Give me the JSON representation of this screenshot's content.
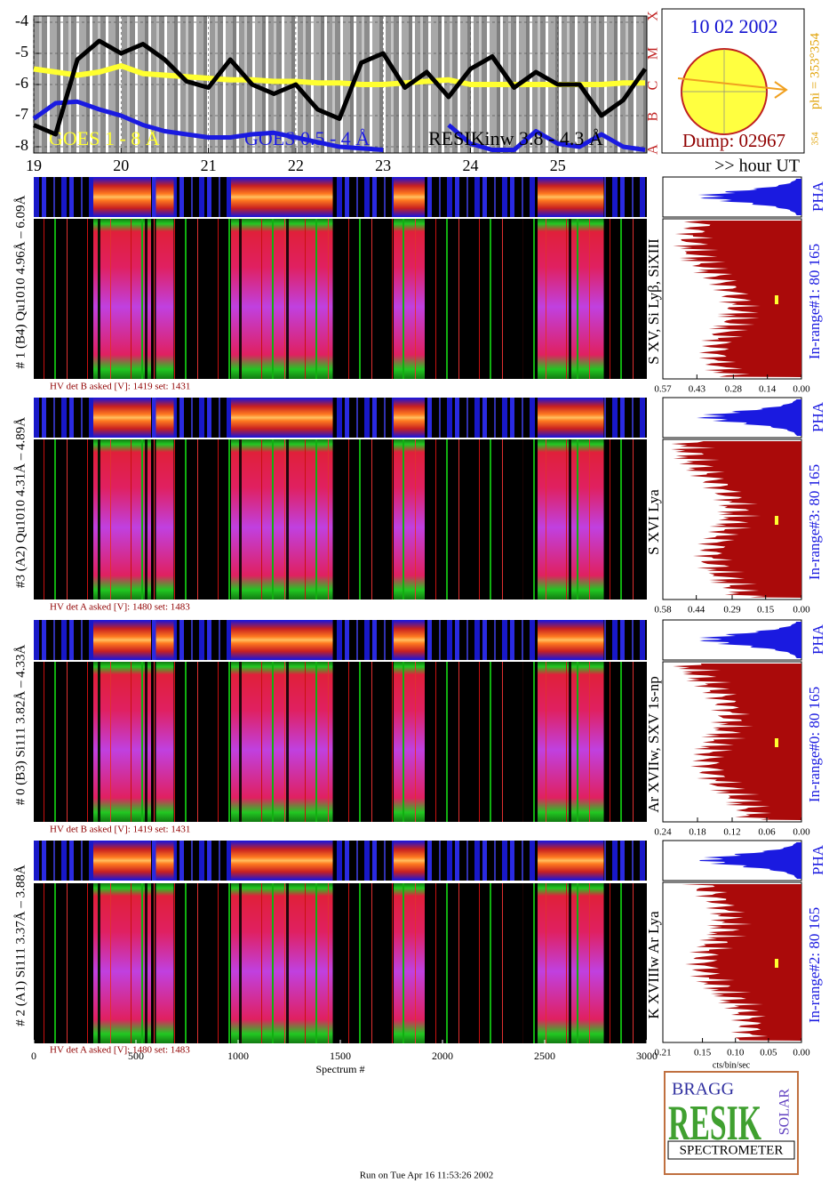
{
  "chart_data": [
    {
      "type": "line",
      "grid": true,
      "x": [
        19,
        19.25,
        19.5,
        19.75,
        20,
        20.25,
        20.5,
        20.75,
        21,
        21.25,
        21.5,
        21.75,
        22,
        22.25,
        22.5,
        22.75,
        23,
        23.25,
        23.5,
        23.75,
        24,
        24.25,
        24.5,
        24.75,
        25,
        25.25,
        25.5,
        25.75,
        26
      ],
      "xlim": [
        19,
        26.02
      ],
      "xticks": [
        19,
        20,
        21,
        22,
        23,
        24,
        25
      ],
      "ylim": [
        -8.2,
        -3.8
      ],
      "yticks": [
        -4,
        -5,
        -6,
        -7,
        -8
      ],
      "class_labels": [
        "A",
        "B",
        "C",
        "M",
        "X"
      ],
      "x_axis_label": ">> hour UT",
      "series": [
        {
          "name": "GOES 1 - 8 Å",
          "color": "#ffff30",
          "values": [
            -5.5,
            -5.6,
            -5.7,
            -5.6,
            -5.4,
            -5.65,
            -5.7,
            -5.75,
            -5.8,
            -5.85,
            -5.85,
            -5.9,
            -5.9,
            -5.95,
            -5.95,
            -6.0,
            -6.0,
            -5.95,
            -5.9,
            -5.85,
            -6.0,
            -6.0,
            -6.0,
            -6.0,
            -6.0,
            -6.0,
            -6.0,
            -5.95,
            -5.95
          ]
        },
        {
          "name": "GOES 0.5 - 4 Å",
          "color": "#1a1ae0",
          "values": [
            -7.1,
            -6.6,
            -6.55,
            -6.8,
            -7.0,
            -7.3,
            -7.5,
            -7.6,
            -7.7,
            -7.7,
            -7.6,
            -7.55,
            -7.7,
            -7.85,
            -8.0,
            -8.05,
            -8.1,
            null,
            null,
            -7.3,
            -7.9,
            -8.1,
            -8.1,
            -7.5,
            -7.9,
            -8.0,
            -7.6,
            -8.0,
            -8.1
          ]
        },
        {
          "name": "RESIKinw 3.8 - 4.3 Å",
          "color": "#000000",
          "values": [
            -7.3,
            -7.6,
            -5.2,
            -4.6,
            -5.0,
            -4.7,
            -5.2,
            -5.9,
            -6.1,
            -5.2,
            -6.0,
            -6.3,
            -6.0,
            -6.8,
            -7.1,
            -5.3,
            -5.0,
            -6.1,
            -5.6,
            -6.4,
            -5.5,
            -5.1,
            -6.1,
            -5.6,
            -6.0,
            -6.0,
            -7.0,
            -6.5,
            -5.5
          ]
        }
      ]
    },
    {
      "type": "area",
      "title": "PHA",
      "xlim": [
        0.57,
        0
      ],
      "xticks": [
        0.57,
        0.43,
        0.28,
        0.14,
        {
          "value": 0,
          "label": "0.00"
        }
      ]
    },
    {
      "type": "area",
      "title": "PHA",
      "xlim": [
        0.58,
        0
      ],
      "xticks": [
        0.58,
        0.44,
        0.29,
        0.15,
        {
          "value": 0,
          "label": "0.00"
        }
      ]
    },
    {
      "type": "area",
      "title": "PHA",
      "xlim": [
        0.24,
        0
      ],
      "xticks": [
        0.24,
        0.18,
        0.12,
        0.06,
        {
          "value": 0,
          "label": "0.00"
        }
      ]
    },
    {
      "type": "area",
      "title": "PHA",
      "xlim": [
        0.21,
        0
      ],
      "xticks": [
        0.21,
        0.15,
        {
          "value": 0.1,
          "label": "0.10"
        },
        0.05,
        {
          "value": 0,
          "label": "0.00"
        }
      ]
    },
    {
      "type": "axis",
      "xlim": [
        0,
        3000
      ],
      "xticks": [
        0,
        500,
        1000,
        1500,
        2000,
        2500,
        3000
      ],
      "x_label": "Spectrum #"
    }
  ],
  "detectors": [
    {
      "label": "# 1 (B4) Qu1010 4.96Å – 6.09Å",
      "hv": "HV det B asked [V]:  1419 set:  1431",
      "lines": "S XV, Si Lyβ, SiXIII",
      "range": "In-range#1:   80 165"
    },
    {
      "label": "#3 (A2) Qu1010  4.31Å – 4.89Å",
      "hv": "HV det A asked [V]:  1480 set:  1483",
      "lines": "S XVI Lya",
      "range": "In-range#3:   80 165"
    },
    {
      "label": "# 0 (B3) Si111  3.82Å – 4.33Å",
      "hv": "HV det B asked [V]:  1419 set:  1431",
      "lines": "Ar XVIIw, SXV 1s-np",
      "range": "In-range#0:   80 165"
    },
    {
      "label": "# 2 (A1) Si111  3.37Å – 3.88Å",
      "hv": "HV det A asked [V]:  1480 set:  1483",
      "lines": "K XVIIIw Ar Lya",
      "range": "In-range#2:   80 165"
    }
  ],
  "sun": {
    "date": "10 02 2002",
    "dump": "Dump: 02967",
    "phi": "phi = 353°354",
    "phi_small": "354"
  },
  "hist_unit": "cts/bin/sec",
  "logo": {
    "bragg": "BRAGG",
    "resik": "RESIK",
    "solar": "SOLAR",
    "spectrometer": "SPECTROMETER"
  },
  "footer": "Run on Tue Apr 16 11:53:26 2002"
}
